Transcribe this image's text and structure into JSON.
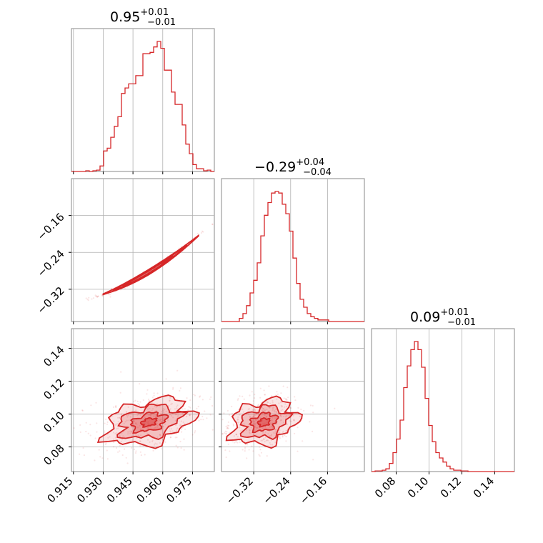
{
  "chart_data": {
    "type": "corner",
    "color": "#d62728",
    "params": [
      "p0",
      "p1",
      "p2"
    ],
    "titles": [
      {
        "value": "0.95",
        "plus": "+0.01",
        "minus": "−0.01"
      },
      {
        "value": "−0.29",
        "plus": "+0.04",
        "minus": "−0.04"
      },
      {
        "value": "0.09",
        "plus": "+0.01",
        "minus": "−0.01"
      }
    ],
    "axes": {
      "p0": {
        "range": [
          0.914,
          0.986
        ],
        "ticks": [
          0.915,
          0.93,
          0.945,
          0.96,
          0.975
        ],
        "tick_labels": [
          "0.915",
          "0.930",
          "0.945",
          "0.960",
          "0.975"
        ]
      },
      "p1": {
        "range": [
          -0.39,
          -0.08
        ],
        "ticks": [
          -0.32,
          -0.24,
          -0.16
        ],
        "tick_labels": [
          "−0.32",
          "−0.24",
          "−0.16"
        ]
      },
      "p2": {
        "range": [
          0.065,
          0.152
        ],
        "ticks": [
          0.08,
          0.1,
          0.12,
          0.14
        ],
        "tick_labels": [
          "0.08",
          "0.10",
          "0.12",
          "0.14"
        ]
      }
    },
    "histograms": [
      {
        "param": "p0",
        "bin_edges": [
          0.914,
          0.9158,
          0.9176,
          0.9194,
          0.9212,
          0.923,
          0.9248,
          0.9266,
          0.9284,
          0.9302,
          0.932,
          0.9338,
          0.9356,
          0.9374,
          0.9392,
          0.941,
          0.9428,
          0.9446,
          0.9464,
          0.9482,
          0.95,
          0.9518,
          0.9536,
          0.9554,
          0.9572,
          0.959,
          0.9608,
          0.9626,
          0.9644,
          0.9662,
          0.968,
          0.9698,
          0.9716,
          0.9734,
          0.9752,
          0.977,
          0.9788,
          0.9806,
          0.9824,
          0.9842,
          0.986
        ],
        "counts": [
          0,
          0,
          0,
          0,
          0.5,
          0,
          0.5,
          1,
          4,
          15,
          17,
          25,
          33,
          40,
          57,
          61,
          64,
          64,
          70,
          70,
          86,
          86,
          87,
          91,
          95,
          90,
          74,
          74,
          58,
          49,
          49,
          34,
          20,
          13,
          5,
          2,
          2,
          0.5,
          1,
          0
        ]
      },
      {
        "param": "p1",
        "bin_edges": [
          -0.39,
          -0.3822,
          -0.3745,
          -0.3668,
          -0.359,
          -0.3512,
          -0.3435,
          -0.3358,
          -0.328,
          -0.3202,
          -0.3125,
          -0.3048,
          -0.297,
          -0.2892,
          -0.2815,
          -0.2738,
          -0.266,
          -0.2582,
          -0.2505,
          -0.2428,
          -0.235,
          -0.2272,
          -0.2195,
          -0.2118,
          -0.204,
          -0.1962,
          -0.1885,
          -0.1808,
          -0.173,
          -0.1652,
          -0.1575,
          -0.1498,
          -0.142,
          -0.1342,
          -0.1265,
          -0.1188,
          -0.111,
          -0.1032,
          -0.0955,
          -0.0878,
          -0.08
        ],
        "counts": [
          0,
          0,
          0,
          0,
          0,
          2,
          5,
          10,
          18,
          26,
          37,
          54,
          67,
          75,
          81,
          82,
          81,
          74,
          68,
          57,
          40,
          24,
          14,
          9,
          5,
          3,
          2,
          1,
          1,
          1,
          0,
          0,
          0,
          0,
          0,
          0,
          0,
          0,
          0,
          0
        ]
      },
      {
        "param": "p2",
        "bin_edges": [
          0.065,
          0.06718,
          0.06935,
          0.07152,
          0.0737,
          0.07588,
          0.07805,
          0.08022,
          0.0824,
          0.08458,
          0.08675,
          0.08892,
          0.0911,
          0.09328,
          0.09545,
          0.09762,
          0.0998,
          0.10198,
          0.10415,
          0.10632,
          0.1085,
          0.11068,
          0.11285,
          0.11502,
          0.1172,
          0.11938,
          0.12155,
          0.12372,
          0.1259,
          0.12808,
          0.13025,
          0.13242,
          0.1346,
          0.13678,
          0.13895,
          0.14112,
          0.1433,
          0.14548,
          0.14765,
          0.14982,
          0.152
        ],
        "counts": [
          0,
          0.5,
          0.5,
          1,
          2,
          6,
          14,
          24,
          38,
          62,
          78,
          90,
          96,
          90,
          77,
          54,
          34,
          22,
          14,
          10,
          7,
          4,
          2,
          1,
          1,
          0.5,
          0.5,
          0,
          0,
          0,
          0,
          0,
          0,
          0,
          0,
          0,
          0,
          0,
          0,
          0
        ]
      }
    ],
    "pairs": [
      {
        "x": "p0",
        "y": "p1",
        "x_mean": 0.952,
        "y_mean": -0.288,
        "rx": 0.0095,
        "ry": 0.006,
        "x_min": 0.928,
        "x_max": 0.982,
        "curve": "y = -0.302 + 2.25*(x-0.945) + 22*(x-0.945)^2 (approx.)"
      },
      {
        "x": "p0",
        "y": "p2",
        "x_mean": 0.953,
        "y_mean": 0.095,
        "rx": 0.011,
        "ry": 0.0065,
        "tilt_deg": 14
      },
      {
        "x": "p1",
        "y": "p2",
        "x_mean": -0.298,
        "y_mean": 0.095,
        "rx": 0.036,
        "ry": 0.0065,
        "tilt_deg": 16
      }
    ]
  }
}
